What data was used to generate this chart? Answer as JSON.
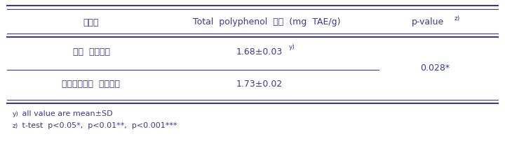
{
  "col1_header": "실험군",
  "col2_header": "Total  polyphenol  함량  (mg  TAE/g)",
  "col3_header": "p-value",
  "col3_header_super": "z)",
  "row1_col1": "일반  파스타면",
  "row1_col2": "1.68±0.03",
  "row1_col2_super": "y)",
  "row2_col1": "인디언시금치  파스타면",
  "row2_col2": "1.73±0.02",
  "row2_col3": "0.028*",
  "footnote1_super": "y)",
  "footnote1": " all value are mean±SD",
  "footnote2_super": "z)",
  "footnote2": " t-test  p<0.05*,  p<0.01**,  p<0.001***",
  "text_color": "#3a3a8c",
  "line_color": "#3a3a8c",
  "bg_color": "#ffffff",
  "font_size": 9.0,
  "footnote_font_size": 8.0,
  "super_font_size": 6.5
}
